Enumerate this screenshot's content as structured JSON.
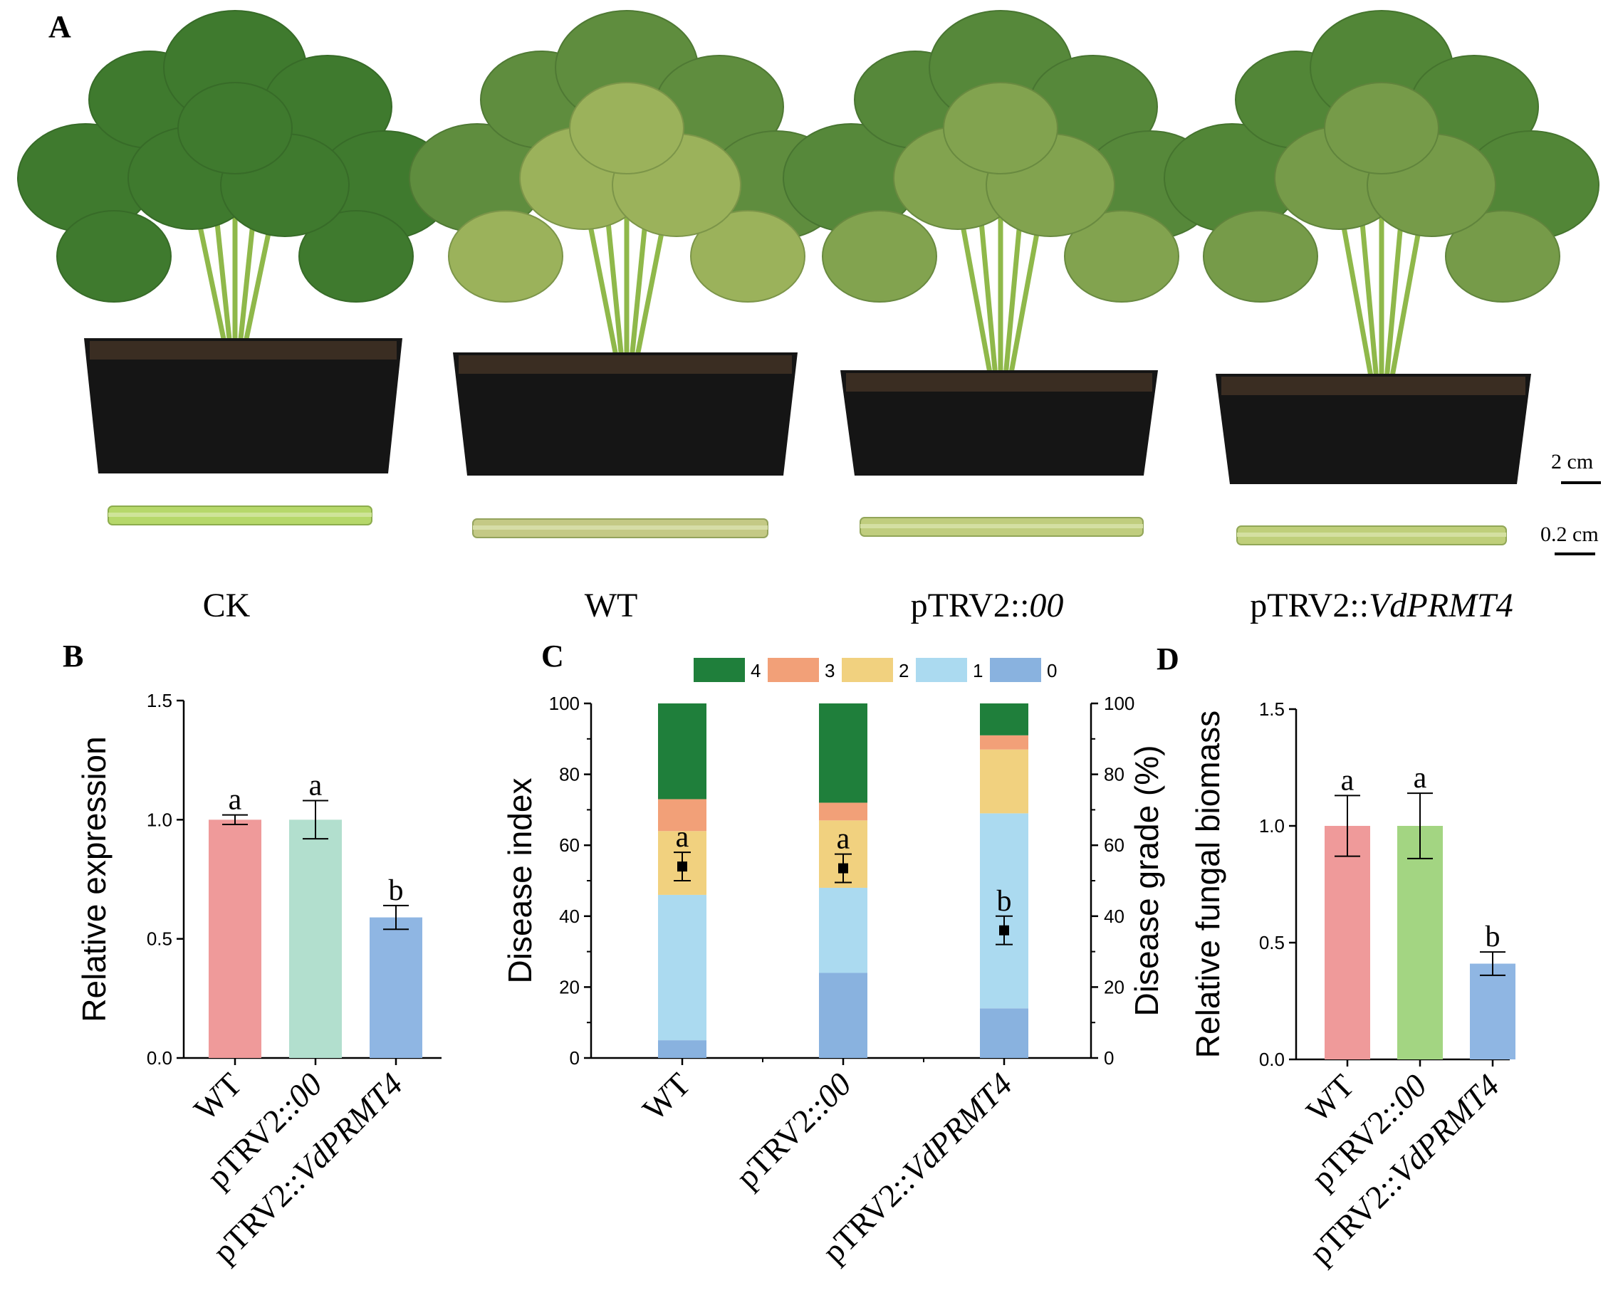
{
  "panel_a": {
    "letter": "A",
    "plants": [
      {
        "label": "CK",
        "label_italic": ""
      },
      {
        "label": "WT",
        "label_italic": ""
      },
      {
        "label": "pTRV2::",
        "label_italic": "00"
      },
      {
        "label": "pTRV2::",
        "label_italic": "VdPRMT4"
      }
    ],
    "scalebars": [
      "2 cm",
      "0.2 cm"
    ],
    "colors": {
      "pot": "#151515",
      "soil": "#3a2d22",
      "leaf_healthy": "#3f7a2e",
      "leaf_chlorotic": "#b9c46a",
      "stem": "#8fb84a"
    }
  },
  "chart_data": [
    {
      "panel": "B",
      "type": "bar",
      "categories": [
        {
          "plain": "WT",
          "italic": ""
        },
        {
          "plain": "pTRV2::",
          "italic": "00"
        },
        {
          "plain": "pTRV2::",
          "italic": "VdPRMT4"
        }
      ],
      "values": [
        1.0,
        1.0,
        0.59
      ],
      "errors": [
        0.02,
        0.08,
        0.05
      ],
      "significance": [
        "a",
        "a",
        "b"
      ],
      "colors": [
        "#ef9a9a",
        "#b2dfce",
        "#8fb6e3"
      ],
      "ylabel": "Relative expression",
      "ylim": [
        0,
        1.5
      ],
      "yticks": [
        "0.0",
        "0.5",
        "1.0",
        "1.5"
      ]
    },
    {
      "panel": "C",
      "type": "bar",
      "stacked": true,
      "categories": [
        {
          "plain": "WT",
          "italic": ""
        },
        {
          "plain": "pTRV2::",
          "italic": "00"
        },
        {
          "plain": "pTRV2::",
          "italic": "VdPRMT4"
        }
      ],
      "series": [
        {
          "name": "0",
          "color": "#89b2df",
          "values": [
            5,
            24,
            14
          ]
        },
        {
          "name": "1",
          "color": "#abdaf0",
          "values": [
            41,
            24,
            55
          ]
        },
        {
          "name": "2",
          "color": "#f1d17f",
          "values": [
            18,
            19,
            18
          ]
        },
        {
          "name": "3",
          "color": "#f2a078",
          "values": [
            9,
            5,
            4
          ]
        },
        {
          "name": "4",
          "color": "#1f7f3b",
          "values": [
            27,
            28,
            9
          ]
        }
      ],
      "legend_order": [
        "4",
        "3",
        "2",
        "1",
        "0"
      ],
      "legend_position": "top",
      "disease_index": [
        54,
        53.5,
        36
      ],
      "disease_index_errors": [
        4,
        4,
        4
      ],
      "significance": [
        "a",
        "a",
        "b"
      ],
      "ylabel_left": "Disease index",
      "ylabel_right": "Disease grade (%)",
      "ylim": [
        0,
        100
      ],
      "yticks": [
        "0",
        "20",
        "40",
        "60",
        "80",
        "100"
      ]
    },
    {
      "panel": "D",
      "type": "bar",
      "categories": [
        {
          "plain": "WT",
          "italic": ""
        },
        {
          "plain": "pTRV2::",
          "italic": "00"
        },
        {
          "plain": "pTRV2::",
          "italic": "VdPRMT4"
        }
      ],
      "values": [
        1.0,
        1.0,
        0.41
      ],
      "errors": [
        0.13,
        0.14,
        0.05
      ],
      "significance": [
        "a",
        "a",
        "b"
      ],
      "colors": [
        "#ef9a9a",
        "#a3d582",
        "#8fb6e3"
      ],
      "ylabel": "Relative fungal biomass",
      "ylim": [
        0,
        1.5
      ],
      "yticks": [
        "0.0",
        "0.5",
        "1.0",
        "1.5"
      ]
    }
  ]
}
